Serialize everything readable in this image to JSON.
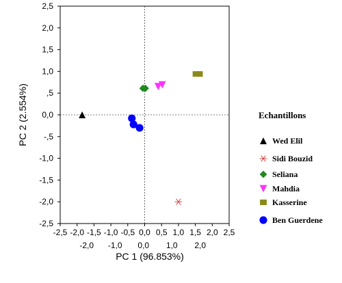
{
  "chart_data": {
    "type": "scatter",
    "xlabel": "PC 1 (96.853%)",
    "ylabel": "PC 2 (2.554%)",
    "xlim": [
      -2.5,
      2.5
    ],
    "ylim": [
      -2.5,
      2.5
    ],
    "x_ticks_top": [
      "-2,5",
      "-2,0",
      "-1,5",
      "-1,0",
      "-0,5",
      "0,0",
      "0,5",
      "1,0",
      "1,5",
      "2,0",
      "2,5"
    ],
    "x_ticks_bottom": [
      "-2,0",
      "-1,0",
      "0,0",
      "1,0",
      "2,0"
    ],
    "y_ticks": [
      "2,5",
      "2,0",
      "1,5",
      "1,0",
      ",5",
      "0,0",
      "-,5",
      "-1,0",
      "-1,5",
      "-2,0",
      "-2,5"
    ],
    "grid": false,
    "legend": {
      "title": "Echantillons",
      "position": "right"
    },
    "series": [
      {
        "name": "Wed Elil",
        "color": "#000000",
        "marker": "triangle-up",
        "points": [
          [
            -1.85,
            0.0
          ]
        ]
      },
      {
        "name": "Sidi Bouzid",
        "color": "#e04040",
        "marker": "asterisk",
        "points": [
          [
            1.0,
            -2.0
          ]
        ]
      },
      {
        "name": "Seliana",
        "color": "#228822",
        "marker": "diamond",
        "points": [
          [
            -0.05,
            0.61
          ],
          [
            0.02,
            0.61
          ]
        ]
      },
      {
        "name": "Mahdia",
        "color": "#ff33ff",
        "marker": "triangle-down",
        "points": [
          [
            0.4,
            0.65
          ],
          [
            0.52,
            0.69
          ]
        ]
      },
      {
        "name": "Kasserine",
        "color": "#8a8a1a",
        "marker": "square",
        "points": [
          [
            1.52,
            0.94
          ],
          [
            1.62,
            0.94
          ]
        ]
      },
      {
        "name": "Ben Guerdene",
        "color": "#0000ff",
        "marker": "circle",
        "points": [
          [
            -0.38,
            -0.08
          ],
          [
            -0.33,
            -0.22
          ],
          [
            -0.15,
            -0.3
          ]
        ]
      }
    ]
  }
}
